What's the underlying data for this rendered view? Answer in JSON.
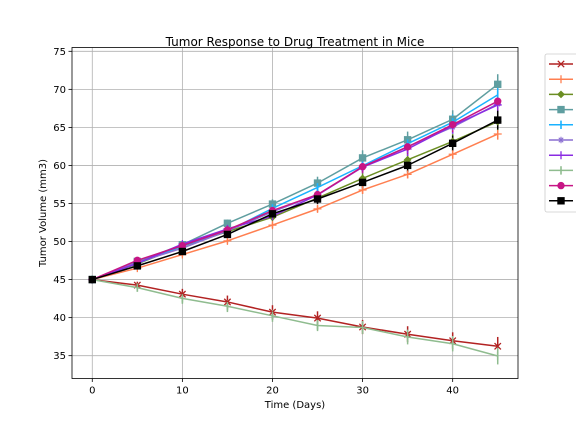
{
  "chart_data": {
    "type": "line",
    "title": "Tumor Response to Drug Treatment in Mice",
    "xlabel": "Time (Days)",
    "ylabel": "Tumor Volume (mm3)",
    "xlim": [
      -2.25,
      47.25
    ],
    "ylim": [
      32.0,
      75.5
    ],
    "xticks": [
      0,
      10,
      20,
      30,
      40
    ],
    "yticks": [
      35,
      40,
      45,
      50,
      55,
      60,
      65,
      70,
      75
    ],
    "grid": true,
    "legend_placement": "outside upper right",
    "x": [
      0,
      5,
      10,
      15,
      20,
      25,
      30,
      35,
      40,
      45
    ],
    "series": [
      {
        "color": "#b22222",
        "marker": "x",
        "values": [
          45.0,
          44.27,
          43.08,
          42.06,
          40.72,
          39.94,
          38.77,
          37.82,
          36.96,
          36.24
        ],
        "errors": [
          0.0,
          0.45,
          0.7,
          0.84,
          0.91,
          0.89,
          0.93,
          1.05,
          1.11,
          1.22
        ]
      },
      {
        "color": "#ff7f50",
        "marker": "+",
        "values": [
          45.0,
          46.5,
          48.29,
          50.09,
          52.16,
          54.29,
          56.77,
          58.83,
          61.47,
          64.13
        ],
        "errors": [
          0.0,
          0.16,
          0.24,
          0.33,
          0.36,
          0.44,
          0.49,
          0.54,
          0.6,
          0.74
        ]
      },
      {
        "color": "#6b8e23",
        "marker": "D",
        "values": [
          45.0,
          47.06,
          49.4,
          51.3,
          53.2,
          55.72,
          58.3,
          60.74,
          63.16,
          65.76
        ],
        "errors": [
          0.0,
          0.21,
          0.41,
          0.48,
          0.55,
          0.58,
          0.75,
          0.88,
          1.03,
          1.15
        ]
      },
      {
        "color": "#5f9ea0",
        "marker": "s",
        "values": [
          45.0,
          47.39,
          49.58,
          52.4,
          54.92,
          57.68,
          60.99,
          63.37,
          66.07,
          70.66
        ],
        "errors": [
          0.0,
          0.24,
          0.43,
          0.49,
          0.62,
          0.84,
          1.0,
          1.08,
          1.18,
          1.33
        ]
      },
      {
        "color": "#1ab2ff",
        "marker": "|",
        "values": [
          45.0,
          47.13,
          49.42,
          51.36,
          54.36,
          57.11,
          59.96,
          62.86,
          65.68,
          69.27
        ],
        "errors": [
          0.0,
          0.2,
          0.38,
          0.55,
          0.59,
          0.74,
          0.89,
          0.93,
          1.03,
          1.13
        ]
      },
      {
        "color": "#8a6fd1",
        "marker": "*",
        "values": [
          45.0,
          47.26,
          49.13,
          51.4,
          53.9,
          56.17,
          59.83,
          62.47,
          65.05,
          68.08
        ],
        "errors": [
          0.0,
          0.23,
          0.38,
          0.47,
          0.53,
          0.59,
          0.75,
          0.82,
          0.93,
          1.05
        ]
      },
      {
        "color": "#8a2be2",
        "marker": "+",
        "values": [
          45.0,
          47.13,
          49.66,
          51.66,
          53.34,
          56.12,
          59.78,
          62.16,
          65.22,
          67.95
        ],
        "errors": [
          0.0,
          0.22,
          0.39,
          0.5,
          0.58,
          0.69,
          0.82,
          0.92,
          1.0,
          1.12
        ]
      },
      {
        "color": "#8fbc8f",
        "marker": "|",
        "values": [
          45.0,
          43.94,
          42.53,
          41.5,
          40.24,
          38.97,
          38.7,
          37.45,
          36.57,
          34.96
        ],
        "errors": [
          0.0,
          0.48,
          0.72,
          0.77,
          0.79,
          0.74,
          0.86,
          0.97,
          1.01,
          1.11
        ]
      },
      {
        "color": "#c71585",
        "marker": "o",
        "values": [
          45.0,
          47.53,
          49.46,
          51.53,
          54.07,
          56.17,
          59.83,
          62.44,
          65.36,
          68.44
        ],
        "errors": [
          0.0,
          0.26,
          0.36,
          0.56,
          0.63,
          0.64,
          0.79,
          0.91,
          0.98,
          1.07
        ]
      },
      {
        "color": "#000000",
        "marker": "s",
        "values": [
          45.0,
          46.8,
          48.69,
          50.93,
          53.64,
          55.59,
          57.77,
          60.01,
          62.91,
          65.96
        ],
        "errors": [
          0.0,
          0.2,
          0.34,
          0.37,
          0.56,
          0.68,
          0.82,
          0.93,
          1.02,
          1.24
        ]
      }
    ]
  }
}
